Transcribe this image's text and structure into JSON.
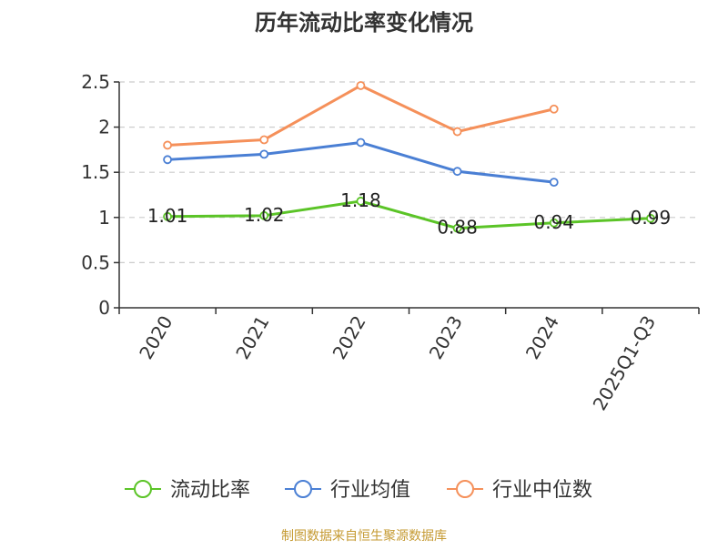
{
  "chart_data": {
    "type": "line",
    "title": "历年流动比率变化情况",
    "categories": [
      "2020",
      "2021",
      "2022",
      "2023",
      "2024",
      "2025Q1-Q3"
    ],
    "ylim": [
      0,
      2.5
    ],
    "yticks": [
      "0",
      "0.5",
      "1",
      "1.5",
      "2",
      "2.5"
    ],
    "grid": true,
    "legend": "bottom",
    "series": [
      {
        "name": "流动比率",
        "color": "#5bc427",
        "values": [
          1.01,
          1.02,
          1.18,
          0.88,
          0.94,
          0.99
        ],
        "labels": [
          "1.01",
          "1.02",
          "1.18",
          "0.88",
          "0.94",
          "0.99"
        ]
      },
      {
        "name": "行业均值",
        "color": "#4a7fd4",
        "values": [
          1.64,
          1.7,
          1.83,
          1.51,
          1.39,
          null
        ]
      },
      {
        "name": "行业中位数",
        "color": "#f5905a",
        "values": [
          1.8,
          1.86,
          2.46,
          1.95,
          2.2,
          null
        ]
      }
    ]
  },
  "source": "制图数据来自恒生聚源数据库"
}
